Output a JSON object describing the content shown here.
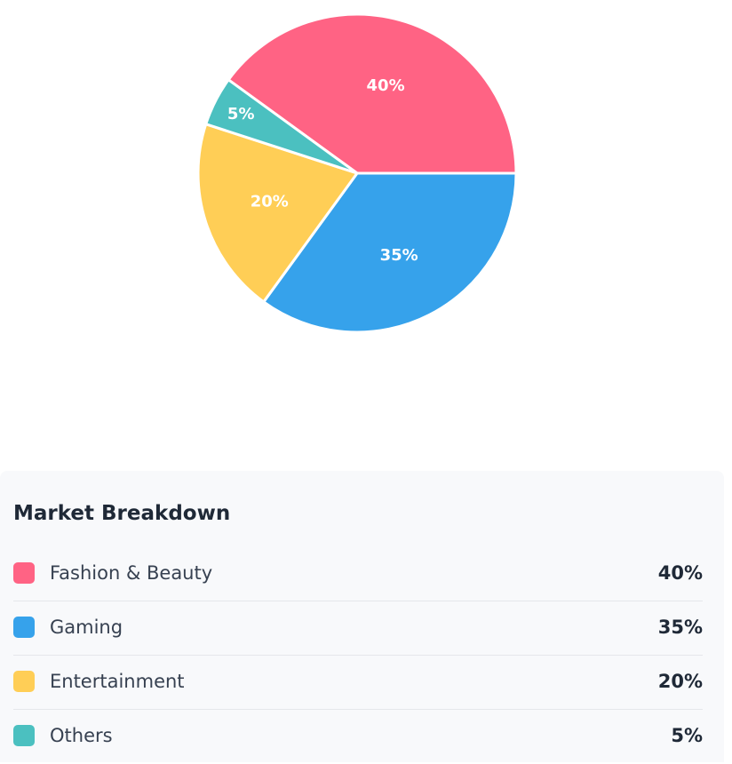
{
  "chart_data": {
    "type": "pie",
    "categories": [
      "Fashion & Beauty",
      "Gaming",
      "Entertainment",
      "Others"
    ],
    "values": [
      40,
      35,
      20,
      5
    ],
    "labels": [
      "40%",
      "35%",
      "20%",
      "5%"
    ],
    "colors": [
      "#ff6384",
      "#36a2eb",
      "#ffce56",
      "#4bc0c0"
    ]
  },
  "breakdown": {
    "title": "Market Breakdown",
    "items": [
      {
        "label": "Fashion & Beauty",
        "value": "40%",
        "color": "#ff6384"
      },
      {
        "label": "Gaming",
        "value": "35%",
        "color": "#36a2eb"
      },
      {
        "label": "Entertainment",
        "value": "20%",
        "color": "#ffce56"
      },
      {
        "label": "Others",
        "value": "5%",
        "color": "#4bc0c0"
      }
    ]
  }
}
